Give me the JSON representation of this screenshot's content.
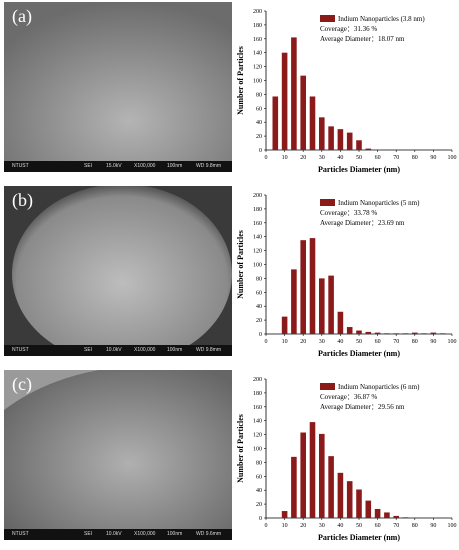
{
  "panels": [
    {
      "label": "(a)",
      "sem": {
        "org": "NTUST",
        "detector": "SEI",
        "kv": "15.0kV",
        "mag": "X100,000",
        "scale": "100nm",
        "wd": "WD 9.8mm"
      },
      "chart_data": {
        "type": "bar",
        "x": [
          5,
          10,
          15,
          20,
          25,
          30,
          35,
          40,
          45,
          50,
          55,
          60,
          65,
          70,
          75,
          80,
          85,
          90,
          95,
          100
        ],
        "values": [
          77,
          140,
          162,
          107,
          77,
          47,
          34,
          30,
          25,
          14,
          2,
          0,
          0,
          0,
          0,
          0,
          0,
          0,
          0,
          0
        ],
        "legend": "Indium Nanoparticles (3.8 nm)",
        "coverage": "Coverage：31.36 %",
        "avg_diameter": "Average Diameter：18.07 nm",
        "xlabel": "Particles Diameter (nm)",
        "ylabel": "Number of Particles",
        "xlim": [
          0,
          100
        ],
        "ylim": [
          0,
          200
        ],
        "xticks": [
          "0",
          "10",
          "20",
          "30",
          "40",
          "50",
          "60",
          "70",
          "80",
          "90",
          "100"
        ],
        "yticks": [
          "0",
          "20",
          "40",
          "60",
          "80",
          "100",
          "120",
          "140",
          "160",
          "180",
          "200"
        ],
        "bar_color": "#8b1a1a"
      }
    },
    {
      "label": "(b)",
      "sem": {
        "org": "NTUST",
        "detector": "SEI",
        "kv": "10.0kV",
        "mag": "X100,000",
        "scale": "100nm",
        "wd": "WD 9.8mm"
      },
      "chart_data": {
        "type": "bar",
        "x": [
          5,
          10,
          15,
          20,
          25,
          30,
          35,
          40,
          45,
          50,
          55,
          60,
          65,
          70,
          75,
          80,
          85,
          90,
          95,
          100
        ],
        "values": [
          0,
          25,
          93,
          135,
          138,
          80,
          84,
          32,
          10,
          5,
          3,
          2,
          1,
          1,
          1,
          2,
          1,
          2,
          1,
          0
        ],
        "legend": "Indium Nanoparticles (5 nm)",
        "coverage": "Coverage：33.78 %",
        "avg_diameter": "Average Diameter：23.69 nm",
        "xlabel": "Particles Diameter (nm)",
        "ylabel": "Number of Particles",
        "xlim": [
          0,
          100
        ],
        "ylim": [
          0,
          200
        ],
        "xticks": [
          "0",
          "10",
          "20",
          "30",
          "40",
          "50",
          "60",
          "70",
          "80",
          "90",
          "100"
        ],
        "yticks": [
          "0",
          "20",
          "40",
          "60",
          "80",
          "100",
          "120",
          "140",
          "160",
          "180",
          "200"
        ],
        "bar_color": "#8b1a1a"
      }
    },
    {
      "label": "(c)",
      "sem": {
        "org": "NTUST",
        "detector": "SEI",
        "kv": "10.0kV",
        "mag": "X100,000",
        "scale": "100nm",
        "wd": "WD 9.6mm"
      },
      "chart_data": {
        "type": "bar",
        "x": [
          5,
          10,
          15,
          20,
          25,
          30,
          35,
          40,
          45,
          50,
          55,
          60,
          65,
          70,
          75,
          80,
          85,
          90,
          95,
          100
        ],
        "values": [
          0,
          10,
          88,
          123,
          138,
          121,
          89,
          65,
          53,
          41,
          25,
          13,
          8,
          3,
          1,
          0,
          0,
          0,
          0,
          0
        ],
        "legend": "Indium Nanoparticles (6 nm)",
        "coverage": "Coverage：36.87 %",
        "avg_diameter": "Average Diameter：29.56 nm",
        "xlabel": "Particles Diameter (nm)",
        "ylabel": "Number of Particles",
        "xlim": [
          0,
          100
        ],
        "ylim": [
          0,
          200
        ],
        "xticks": [
          "0",
          "10",
          "20",
          "30",
          "40",
          "50",
          "60",
          "70",
          "80",
          "90",
          "100"
        ],
        "yticks": [
          "0",
          "20",
          "40",
          "60",
          "80",
          "100",
          "120",
          "140",
          "160",
          "180",
          "200"
        ],
        "bar_color": "#8b1a1a"
      }
    }
  ]
}
